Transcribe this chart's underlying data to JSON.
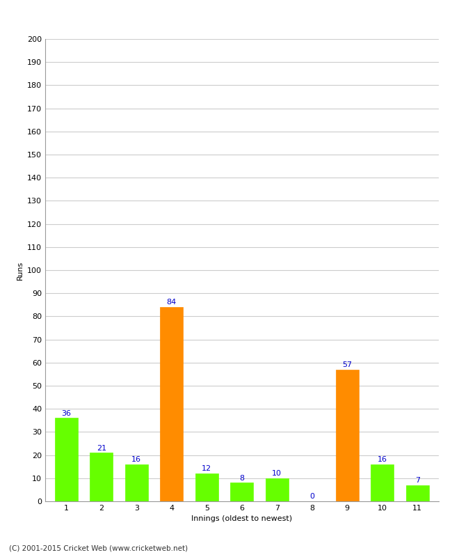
{
  "xlabel": "Innings (oldest to newest)",
  "ylabel": "Runs",
  "categories": [
    1,
    2,
    3,
    4,
    5,
    6,
    7,
    8,
    9,
    10,
    11
  ],
  "values": [
    36,
    21,
    16,
    84,
    12,
    8,
    10,
    0,
    57,
    16,
    7
  ],
  "bar_colors": [
    "#66ff00",
    "#66ff00",
    "#66ff00",
    "#ff8c00",
    "#66ff00",
    "#66ff00",
    "#66ff00",
    "#66ff00",
    "#ff8c00",
    "#66ff00",
    "#66ff00"
  ],
  "ylim": [
    0,
    200
  ],
  "yticks": [
    0,
    10,
    20,
    30,
    40,
    50,
    60,
    70,
    80,
    90,
    100,
    110,
    120,
    130,
    140,
    150,
    160,
    170,
    180,
    190,
    200
  ],
  "label_color": "#0000cc",
  "label_fontsize": 8,
  "axis_label_fontsize": 8,
  "tick_fontsize": 8,
  "ylabel_fontsize": 8,
  "footer": "(C) 2001-2015 Cricket Web (www.cricketweb.net)",
  "footer_fontsize": 7.5,
  "background_color": "#ffffff",
  "grid_color": "#cccccc",
  "bar_width": 0.65
}
